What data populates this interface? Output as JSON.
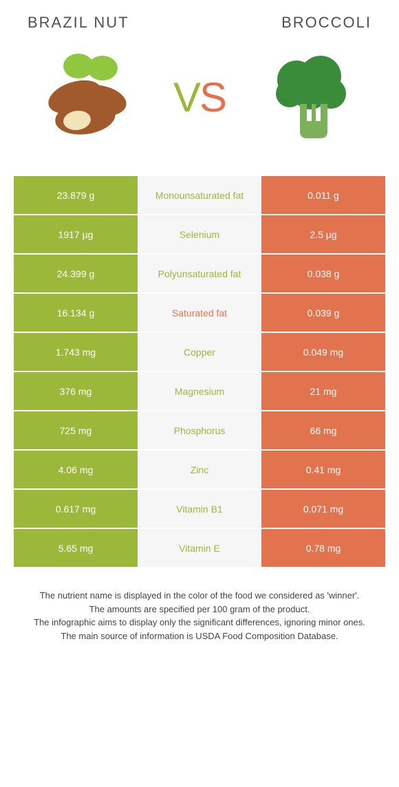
{
  "header": {
    "left_title": "Brazil nut",
    "right_title": "Broccoli",
    "vs_v": "V",
    "vs_s": "S"
  },
  "colors": {
    "left": "#9bb83a",
    "right": "#e2734f",
    "mid_bg": "#f6f6f6",
    "text_dark": "#505050"
  },
  "rows": [
    {
      "left": "23.879 g",
      "label": "Monounsaturated fat",
      "right": "0.011 g",
      "winner": "left"
    },
    {
      "left": "1917 µg",
      "label": "Selenium",
      "right": "2.5 µg",
      "winner": "left"
    },
    {
      "left": "24.399 g",
      "label": "Polyunsaturated fat",
      "right": "0.038 g",
      "winner": "left"
    },
    {
      "left": "16.134 g",
      "label": "Saturated fat",
      "right": "0.039 g",
      "winner": "right"
    },
    {
      "left": "1.743 mg",
      "label": "Copper",
      "right": "0.049 mg",
      "winner": "left"
    },
    {
      "left": "376 mg",
      "label": "Magnesium",
      "right": "21 mg",
      "winner": "left"
    },
    {
      "left": "725 mg",
      "label": "Phosphorus",
      "right": "66 mg",
      "winner": "left"
    },
    {
      "left": "4.06 mg",
      "label": "Zinc",
      "right": "0.41 mg",
      "winner": "left"
    },
    {
      "left": "0.617 mg",
      "label": "Vitamin B1",
      "right": "0.071 mg",
      "winner": "left"
    },
    {
      "left": "5.65 mg",
      "label": "Vitamin E",
      "right": "0.78 mg",
      "winner": "left"
    }
  ],
  "footer": {
    "line1": "The nutrient name is displayed in the color of the food we considered as 'winner'.",
    "line2": "The amounts are specified per 100 gram of the product.",
    "line3": "The infographic aims to display only the significant differences, ignoring minor ones.",
    "line4": "The main source of information is USDA Food Composition Database."
  }
}
